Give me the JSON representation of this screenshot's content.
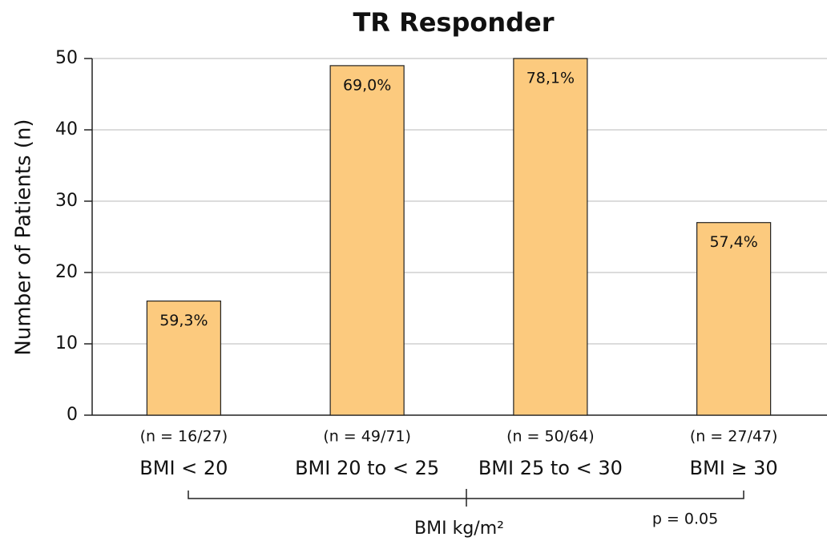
{
  "chart_data": {
    "type": "bar",
    "title": "TR Responder",
    "y_label": "Number of Patients (n)",
    "x_label": "BMI kg/m²",
    "categories": [
      "BMI < 20",
      "BMI 20 to < 25",
      "BMI 25 to < 30",
      "BMI ≥ 30"
    ],
    "group_counts": [
      "(n = 16/27)",
      "(n = 49/71)",
      "(n = 50/64)",
      "(n = 27/47)"
    ],
    "values": [
      16,
      49,
      50,
      27
    ],
    "bar_labels": [
      "59,3%",
      "69,0%",
      "78,1%",
      "57,4%"
    ],
    "color": "#fcca7e",
    "ylim": [
      0,
      50
    ],
    "yticks": [
      0,
      10,
      20,
      30,
      40,
      50
    ],
    "grid": true,
    "annotation": "p = 0.05"
  }
}
